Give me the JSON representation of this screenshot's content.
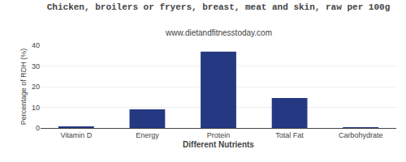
{
  "chart_data": {
    "type": "bar",
    "title": "Chicken, broilers or fryers, breast, meat and skin, raw per 100g",
    "subtitle": "www.dietandfitnesstoday.com",
    "xlabel": "Different Nutrients",
    "ylabel": "Percentage of RDH (%)",
    "categories": [
      "Vitamin D",
      "Energy",
      "Protein",
      "Total Fat",
      "Carbohydrate"
    ],
    "values": [
      0.5,
      9,
      37,
      14.5,
      0.2
    ],
    "color": "#253882",
    "ylim": [
      0,
      40
    ],
    "yticks": [
      0,
      10,
      20,
      30,
      40
    ],
    "grid": true
  }
}
